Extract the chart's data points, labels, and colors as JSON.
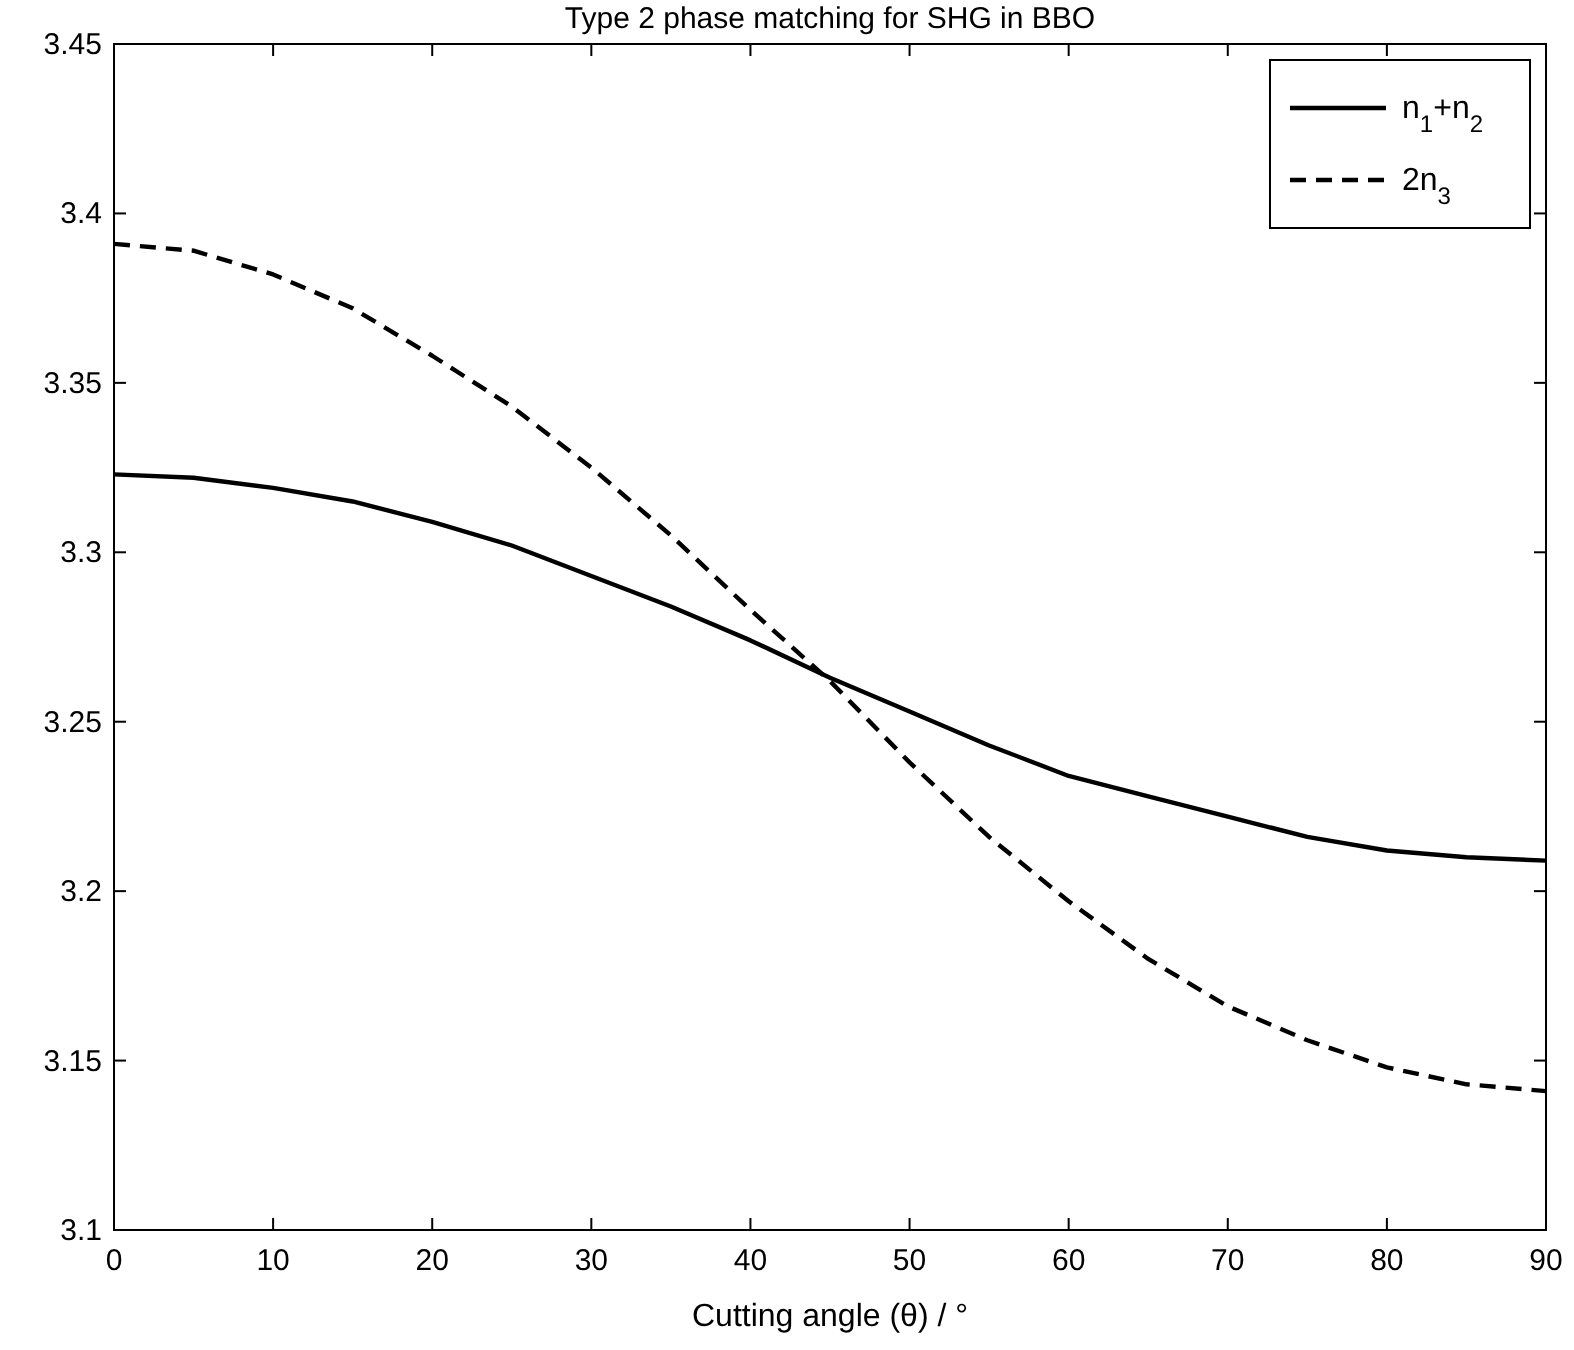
{
  "chart_data": {
    "type": "line",
    "title": "Type 2 phase matching for SHG in BBO",
    "xlabel": "Cutting angle (θ) / °",
    "x": [
      0,
      5,
      10,
      15,
      20,
      25,
      30,
      35,
      40,
      45,
      50,
      55,
      60,
      65,
      70,
      75,
      80,
      85,
      90
    ],
    "series": [
      {
        "name": "n$_{1}$+n$_{2}$",
        "color": "#000000",
        "line_style": "solid",
        "values": [
          3.323,
          3.322,
          3.319,
          3.315,
          3.309,
          3.302,
          3.293,
          3.284,
          3.274,
          3.263,
          3.253,
          3.243,
          3.234,
          3.228,
          3.222,
          3.216,
          3.212,
          3.21,
          3.209
        ]
      },
      {
        "name": "2n$_{3}$",
        "color": "#000000",
        "line_style": "dashed",
        "values": [
          3.391,
          3.389,
          3.382,
          3.372,
          3.358,
          3.343,
          3.325,
          3.305,
          3.283,
          3.262,
          3.238,
          3.216,
          3.197,
          3.18,
          3.166,
          3.156,
          3.148,
          3.143,
          3.141
        ]
      }
    ],
    "xlim": [
      0,
      90
    ],
    "xticks": [
      0,
      10,
      20,
      30,
      40,
      50,
      60,
      70,
      80,
      90
    ],
    "ylim": [
      3.1,
      3.45
    ],
    "yticks": [
      3.1,
      3.15,
      3.2,
      3.25,
      3.3,
      3.35,
      3.4,
      3.45
    ],
    "grid": false,
    "legend": "top right",
    "marker": "none"
  }
}
